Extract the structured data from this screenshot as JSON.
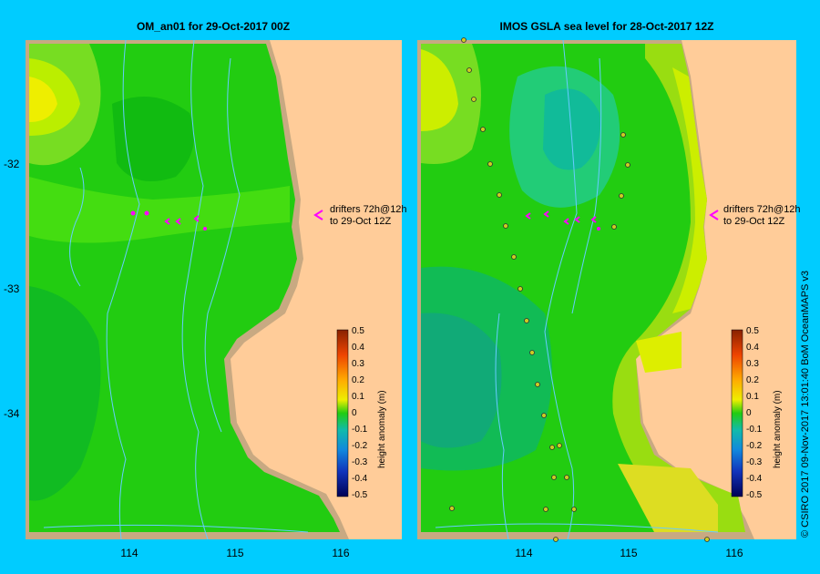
{
  "panels": [
    {
      "title": "OM_an01  for 29-Oct-2017 00Z",
      "annotation": [
        "drifters 72h@12h",
        "to 29-Oct 12Z"
      ],
      "colorbar": {
        "label": "height anomaly (m)",
        "ticks": [
          "0.5",
          "0.4",
          "0.3",
          "0.2",
          "0.1",
          "0",
          "-0.1",
          "-0.2",
          "-0.3",
          "-0.4",
          "-0.5"
        ]
      }
    },
    {
      "title": "IMOS GSLA sea level  for 28-Oct-2017 12Z",
      "annotation": [
        "drifters 72h@12h",
        "to 29-Oct 12Z"
      ],
      "colorbar": {
        "label": "height anomaly (m)",
        "ticks": [
          "0.5",
          "0.4",
          "0.3",
          "0.2",
          "0.1",
          "0",
          "-0.1",
          "-0.2",
          "-0.3",
          "-0.4",
          "-0.5"
        ]
      }
    }
  ],
  "y_axis": [
    "-32",
    "-33",
    "-34"
  ],
  "x_axis": [
    "114",
    "115",
    "116"
  ],
  "credit": "© CSIRO 2017   09-Nov-2017 13:01:40 BoM OceanMAPS v3",
  "colors": {
    "background": "#00ccff",
    "land": "#ffcc99",
    "shelf": "#c8a982",
    "drifter": "#ff00ff",
    "current_lines": "#66ccff"
  }
}
